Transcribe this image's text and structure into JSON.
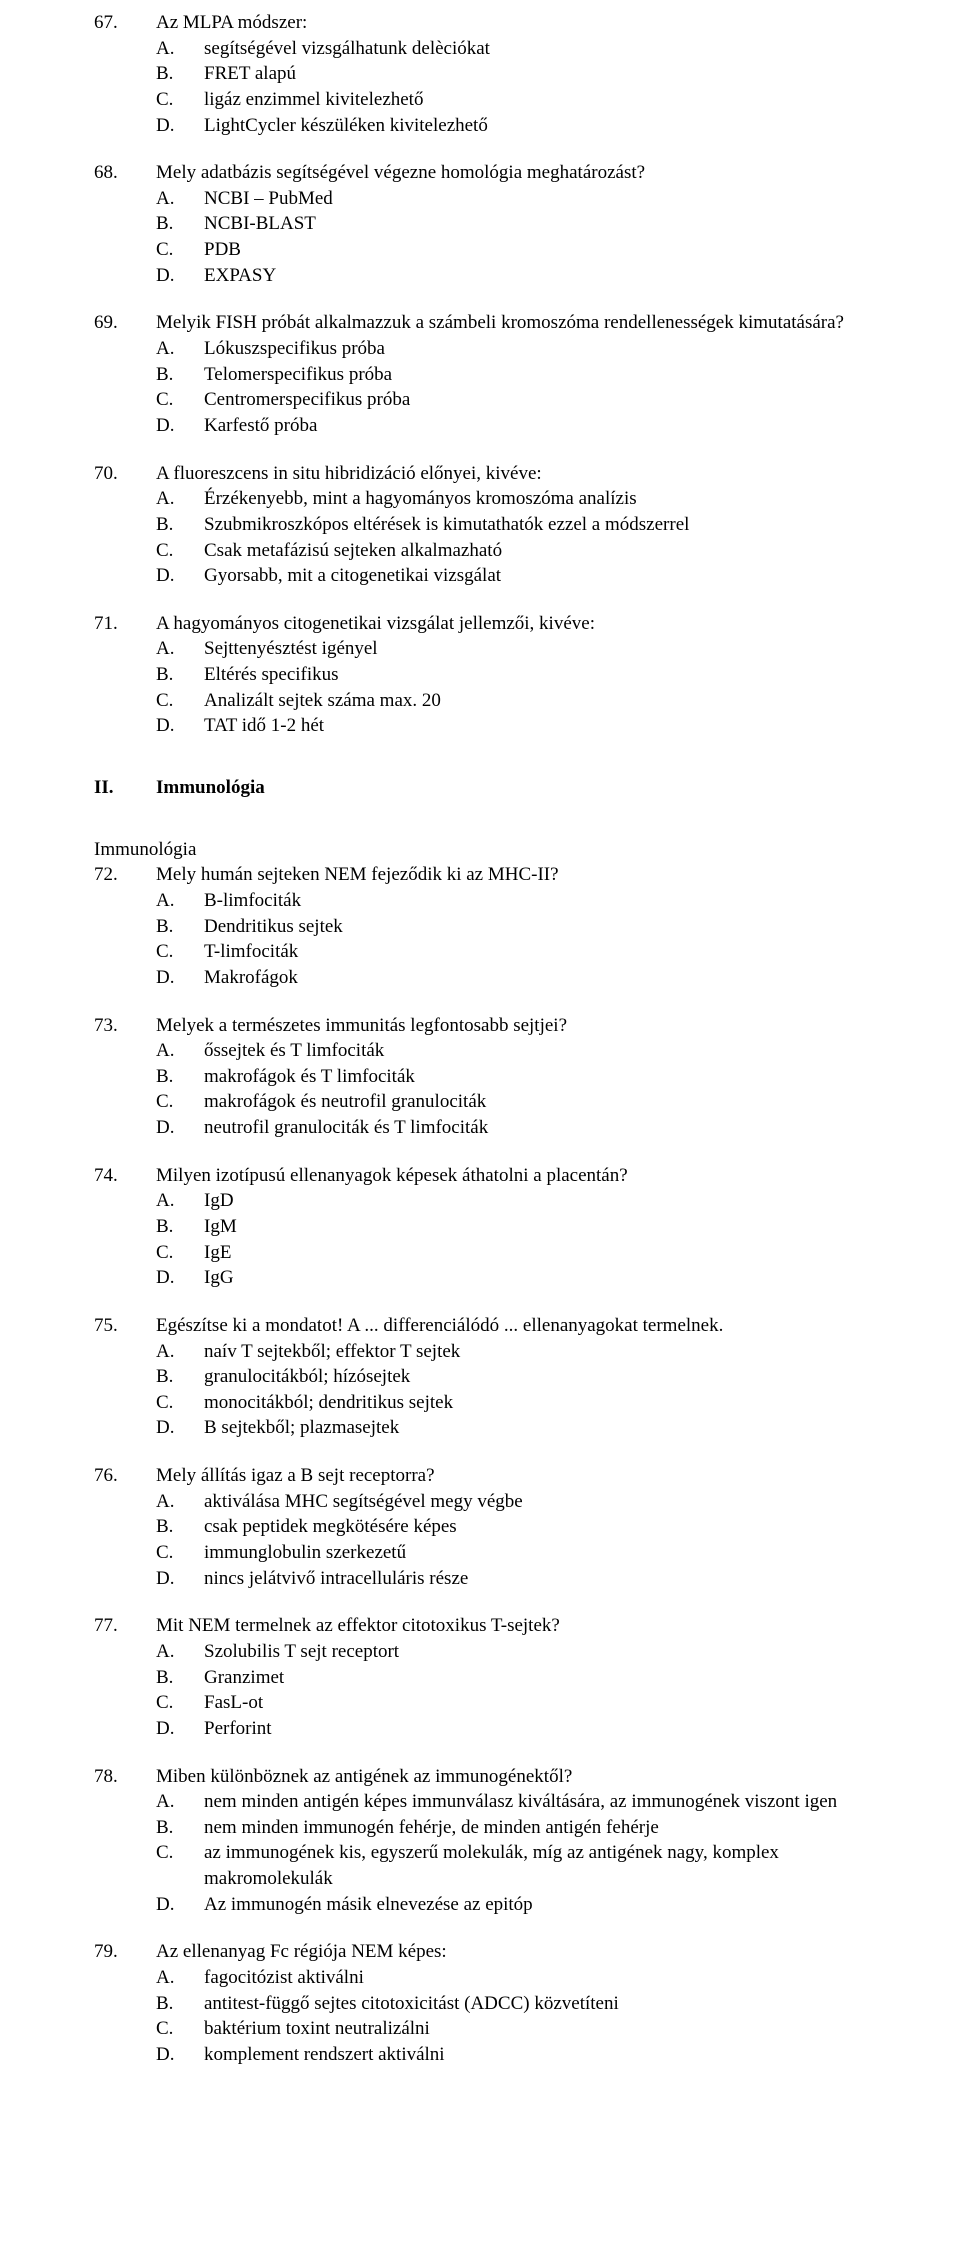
{
  "questions_part1": [
    {
      "num": "67.",
      "stem": "Az MLPA módszer:",
      "options": [
        {
          "l": "A.",
          "t": "segítségével vizsgálhatunk delèciókat"
        },
        {
          "l": "B.",
          "t": "FRET alapú"
        },
        {
          "l": "C.",
          "t": "ligáz enzimmel kivitelezhető"
        },
        {
          "l": "D.",
          "t": "LightCycler készüléken kivitelezhető"
        }
      ]
    },
    {
      "num": "68.",
      "stem": "Mely adatbázis segítségével végezne homológia meghatározást?",
      "options": [
        {
          "l": "A.",
          "t": "NCBI – PubMed"
        },
        {
          "l": "B.",
          "t": "NCBI-BLAST"
        },
        {
          "l": "C.",
          "t": "PDB"
        },
        {
          "l": "D.",
          "t": "EXPASY"
        }
      ]
    },
    {
      "num": "69.",
      "stem": "Melyik FISH próbát alkalmazzuk a számbeli kromoszóma rendellenességek kimutatására?",
      "options": [
        {
          "l": "A.",
          "t": "Lókuszspecifikus próba"
        },
        {
          "l": "B.",
          "t": "Telomerspecifikus próba"
        },
        {
          "l": "C.",
          "t": "Centromerspecifikus próba"
        },
        {
          "l": "D.",
          "t": "Karfestő próba"
        }
      ]
    },
    {
      "num": "70.",
      "stem": "A fluoreszcens in situ hibridizáció előnyei, kivéve:",
      "options": [
        {
          "l": "A.",
          "t": "Érzékenyebb, mint a hagyományos kromoszóma analízis"
        },
        {
          "l": "B.",
          "t": "Szubmikroszkópos eltérések is kimutathatók ezzel a módszerrel"
        },
        {
          "l": "C.",
          "t": "Csak metafázisú sejteken alkalmazható"
        },
        {
          "l": "D.",
          "t": "Gyorsabb, mit a citogenetikai vizsgálat"
        }
      ]
    },
    {
      "num": "71.",
      "stem": "A hagyományos citogenetikai vizsgálat jellemzői, kivéve:",
      "options": [
        {
          "l": "A.",
          "t": "Sejttenyésztést igényel"
        },
        {
          "l": "B.",
          "t": "Eltérés specifikus"
        },
        {
          "l": "C.",
          "t": "Analizált sejtek száma max. 20"
        },
        {
          "l": "D.",
          "t": "TAT idő 1-2 hét"
        }
      ]
    }
  ],
  "section": {
    "num": "II.",
    "title": "Immunológia"
  },
  "subheading": "Immunológia",
  "questions_part2": [
    {
      "num": "72.",
      "stem": "Mely humán sejteken NEM fejeződik ki az MHC-II?",
      "options": [
        {
          "l": "A.",
          "t": "B-limfociták"
        },
        {
          "l": "B.",
          "t": "Dendritikus sejtek"
        },
        {
          "l": "C.",
          "t": "T-limfociták"
        },
        {
          "l": "D.",
          "t": "Makrofágok"
        }
      ]
    },
    {
      "num": "73.",
      "stem": "Melyek a természetes immunitás legfontosabb sejtjei?",
      "options": [
        {
          "l": "A.",
          "t": "őssejtek és T limfociták"
        },
        {
          "l": "B.",
          "t": "makrofágok és T limfociták"
        },
        {
          "l": "C.",
          "t": "makrofágok és neutrofil granulociták"
        },
        {
          "l": "D.",
          "t": "neutrofil granulociták és T limfociták"
        }
      ]
    },
    {
      "num": "74.",
      "stem": "Milyen izotípusú ellenanyagok képesek áthatolni a placentán?",
      "options": [
        {
          "l": "A.",
          "t": "IgD"
        },
        {
          "l": "B.",
          "t": "IgM"
        },
        {
          "l": "C.",
          "t": "IgE"
        },
        {
          "l": "D.",
          "t": "IgG"
        }
      ]
    },
    {
      "num": "75.",
      "stem": "Egészítse ki a mondatot! A ... differenciálódó ... ellenanyagokat termelnek.",
      "options": [
        {
          "l": "A.",
          "t": "naív T sejtekből; effektor T sejtek"
        },
        {
          "l": "B.",
          "t": "granulocitákból; hízósejtek"
        },
        {
          "l": "C.",
          "t": "monocitákból; dendritikus sejtek"
        },
        {
          "l": "D.",
          "t": "B sejtekből; plazmasejtek"
        }
      ]
    },
    {
      "num": "76.",
      "stem": "Mely állítás igaz a B sejt receptorra?",
      "options": [
        {
          "l": "A.",
          "t": "aktiválása MHC segítségével megy végbe"
        },
        {
          "l": "B.",
          "t": "csak peptidek megkötésére képes"
        },
        {
          "l": "C.",
          "t": "immunglobulin szerkezetű"
        },
        {
          "l": "D.",
          "t": "nincs jelátvivő intracelluláris része"
        }
      ]
    },
    {
      "num": "77.",
      "stem": "Mit NEM termelnek az effektor citotoxikus T-sejtek?",
      "options": [
        {
          "l": "A.",
          "t": "Szolubilis T sejt receptort"
        },
        {
          "l": "B.",
          "t": "Granzimet"
        },
        {
          "l": "C.",
          "t": "FasL-ot"
        },
        {
          "l": "D.",
          "t": "Perforint"
        }
      ]
    },
    {
      "num": "78.",
      "stem": "Miben különböznek az antigének az immunogénektől?",
      "options": [
        {
          "l": "A.",
          "t": "nem minden antigén képes immunválasz kiváltására, az immunogének viszont igen"
        },
        {
          "l": "B.",
          "t": "nem minden immunogén fehérje, de minden antigén fehérje"
        },
        {
          "l": "C.",
          "t": "az immunogének kis, egyszerű molekulák, míg az antigének nagy, komplex makromolekulák"
        },
        {
          "l": "D.",
          "t": "Az immunogén másik elnevezése az epitóp"
        }
      ]
    },
    {
      "num": "79.",
      "stem": "Az ellenanyag Fc régiója NEM képes:",
      "options": [
        {
          "l": "A.",
          "t": "fagocitózist aktiválni"
        },
        {
          "l": "B.",
          "t": "antitest-függő sejtes citotoxicitást (ADCC) közvetíteni"
        },
        {
          "l": "C.",
          "t": "baktérium toxint neutralizálni"
        },
        {
          "l": "D.",
          "t": "komplement rendszert aktiválni"
        }
      ]
    }
  ]
}
